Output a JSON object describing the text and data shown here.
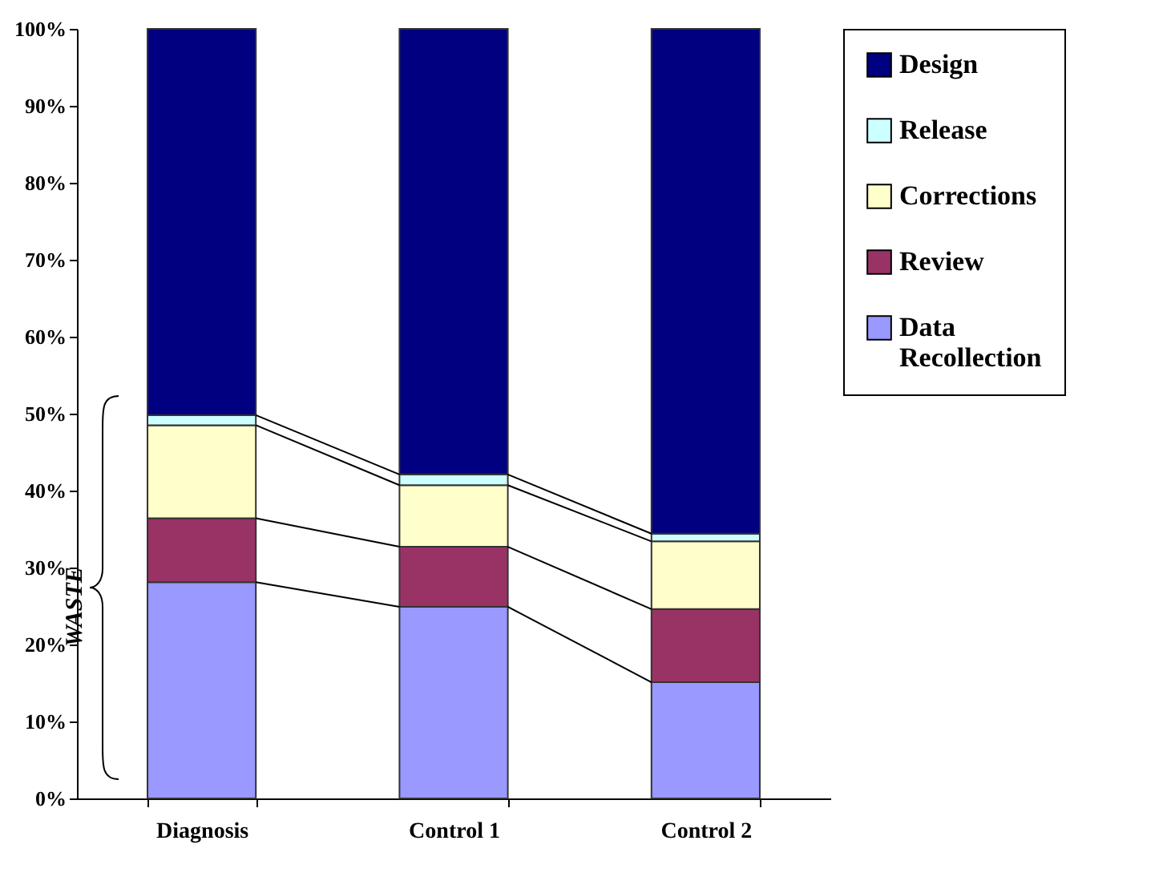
{
  "chart_data": {
    "type": "bar",
    "stacked": true,
    "categories": [
      "Diagnosis",
      "Control 1",
      "Control 2"
    ],
    "series": [
      {
        "name": "Data Recollection",
        "color": "#9999ff",
        "values": [
          28.1,
          24.9,
          15.1
        ]
      },
      {
        "name": "Review",
        "color": "#993366",
        "values": [
          8.3,
          7.8,
          9.5
        ]
      },
      {
        "name": "Corrections",
        "color": "#ffffcc",
        "values": [
          12.1,
          8.0,
          8.8
        ]
      },
      {
        "name": "Release",
        "color": "#ccffff",
        "values": [
          1.3,
          1.4,
          1.0
        ]
      },
      {
        "name": "Design",
        "color": "#000080",
        "values": [
          50.2,
          57.9,
          65.6
        ]
      }
    ],
    "ylim": [
      0,
      100
    ],
    "yticks": [
      {
        "value": 0,
        "label": "0%"
      },
      {
        "value": 10,
        "label": "10%"
      },
      {
        "value": 20,
        "label": "20%"
      },
      {
        "value": 30,
        "label": "30%"
      },
      {
        "value": 40,
        "label": "40%"
      },
      {
        "value": 50,
        "label": "50%"
      },
      {
        "value": 60,
        "label": "60%"
      },
      {
        "value": 70,
        "label": "70%"
      },
      {
        "value": 80,
        "label": "80%"
      },
      {
        "value": 90,
        "label": "90%"
      },
      {
        "value": 100,
        "label": "100%"
      }
    ],
    "annotations": [
      "WASTE"
    ],
    "grid": false,
    "legend": "right"
  }
}
